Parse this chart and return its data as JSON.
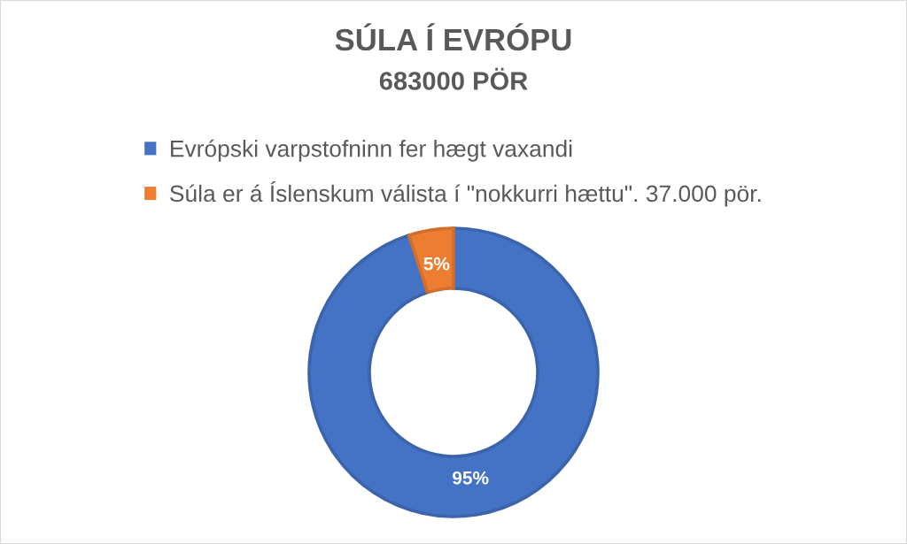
{
  "chart_data": {
    "type": "donut",
    "title": "SÚLA Í EVRÓPU",
    "subtitle": "683000 PÖR",
    "categories": [
      "Evrópski varpstofninn fer hægt vaxandi",
      "Súla er á Íslenskum válista í \"nokkurri hættu\". 37.000 pör."
    ],
    "values": [
      95,
      5
    ],
    "colors": [
      "#4472c4",
      "#ed7d31"
    ],
    "value_labels": [
      "95%",
      "5%"
    ],
    "legend": "top"
  }
}
